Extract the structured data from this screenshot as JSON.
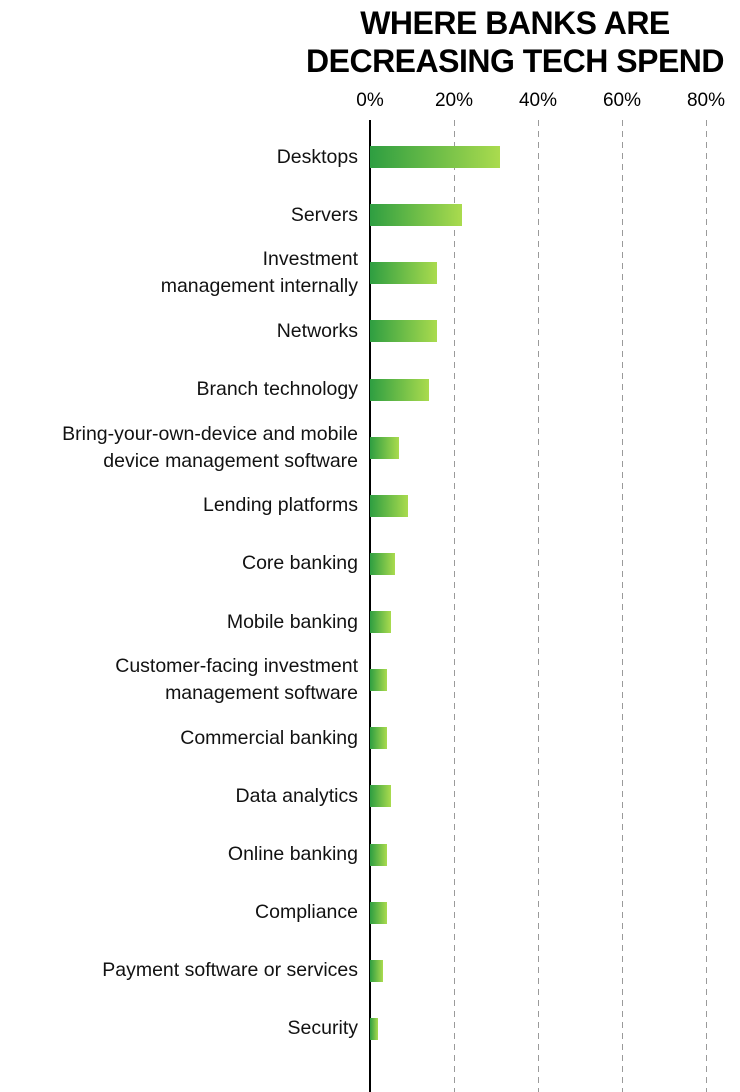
{
  "title": {
    "line1": "WHERE BANKS ARE",
    "line2": "DECREASING TECH SPEND"
  },
  "chart_data": {
    "type": "bar",
    "orientation": "horizontal",
    "title": "WHERE BANKS ARE DECREASING TECH SPEND",
    "categories": [
      "Desktops",
      "Servers",
      "Investment\nmanagement internally",
      "Networks",
      "Branch technology",
      "Bring-your-own-device and mobile\ndevice management software",
      "Lending platforms",
      "Core banking",
      "Mobile banking",
      "Customer-facing investment\nmanagement software",
      "Commercial banking",
      "Data analytics",
      "Online banking",
      "Compliance",
      "Payment software or services",
      "Security"
    ],
    "values": [
      31,
      22,
      16,
      16,
      14,
      7,
      9,
      6,
      5,
      4,
      4,
      5,
      4,
      4,
      3,
      2
    ],
    "value_unit": "%",
    "x_tick_labels": [
      "0%",
      "20%",
      "40%",
      "60%",
      "80%"
    ],
    "x_tick_values": [
      0,
      20,
      40,
      60,
      80
    ],
    "xlim": [
      0,
      88
    ],
    "grid": "dashed-vertical",
    "legend": "none",
    "bar_gradient_start": "#2E9E41",
    "bar_gradient_end": "#AADB4E",
    "axis_color": "#000000",
    "gridline_color": "#9a9a9a"
  }
}
